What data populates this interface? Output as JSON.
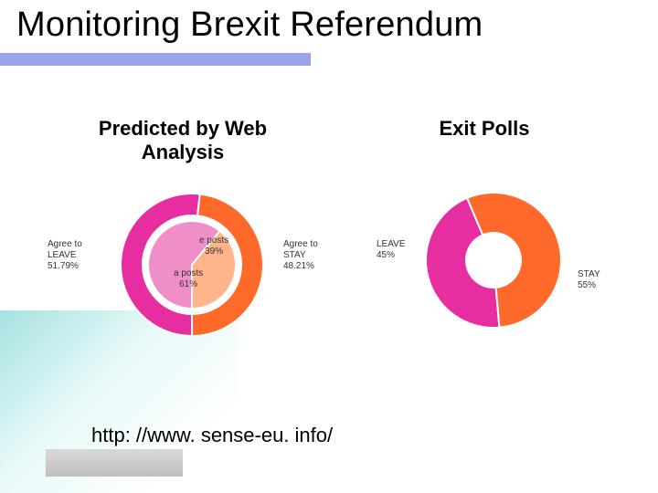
{
  "title": "Monitoring Brexit Referendum",
  "title_fontsize": 38,
  "rule_color": "#9aa4e6",
  "background_gradient": [
    "#4ab8b8",
    "#ffffff"
  ],
  "subheads": {
    "left": "Predicted by Web Analysis",
    "right": "Exit Polls"
  },
  "chart_left": {
    "type": "pie",
    "variant": "nested-donut",
    "outer": {
      "segments": [
        {
          "label": "Agree to LEAVE",
          "value": 51.79,
          "color": "#e62ea0",
          "label_lines": [
            "Agree to",
            "LEAVE",
            "51.79%"
          ]
        },
        {
          "label": "Agree to STAY",
          "value": 48.21,
          "color": "#ff6a2b",
          "label_lines": [
            "Agree to",
            "STAY",
            "48.21%"
          ]
        }
      ],
      "radius": 78,
      "stroke_width": 2,
      "stroke_color": "#ffffff"
    },
    "inner": {
      "segments": [
        {
          "label": "a posts",
          "value": 61,
          "color": "#f08fc7",
          "label_lines": [
            "a posts",
            "61%"
          ]
        },
        {
          "label": "e posts",
          "value": 39,
          "color": "#ffb48a",
          "label_lines": [
            "e posts",
            "39%"
          ]
        }
      ],
      "radius": 48,
      "stroke_width": 2,
      "stroke_color": "#ffffff"
    },
    "center_hole_radius": 0,
    "label_fontsize": 10,
    "label_color": "#333333"
  },
  "chart_right": {
    "type": "pie",
    "variant": "donut",
    "segments": [
      {
        "label": "LEAVE",
        "value": 45,
        "color": "#e62ea0",
        "label_lines": [
          "LEAVE",
          "45%"
        ]
      },
      {
        "label": "STAY",
        "value": 55,
        "color": "#ff6a2b",
        "label_lines": [
          "STAY",
          "55%"
        ]
      }
    ],
    "radius": 74,
    "hole_radius": 30,
    "stroke_width": 2,
    "stroke_color": "#ffffff",
    "label_fontsize": 10,
    "label_color": "#333333"
  },
  "url": "http: //www. sense-eu. info/"
}
